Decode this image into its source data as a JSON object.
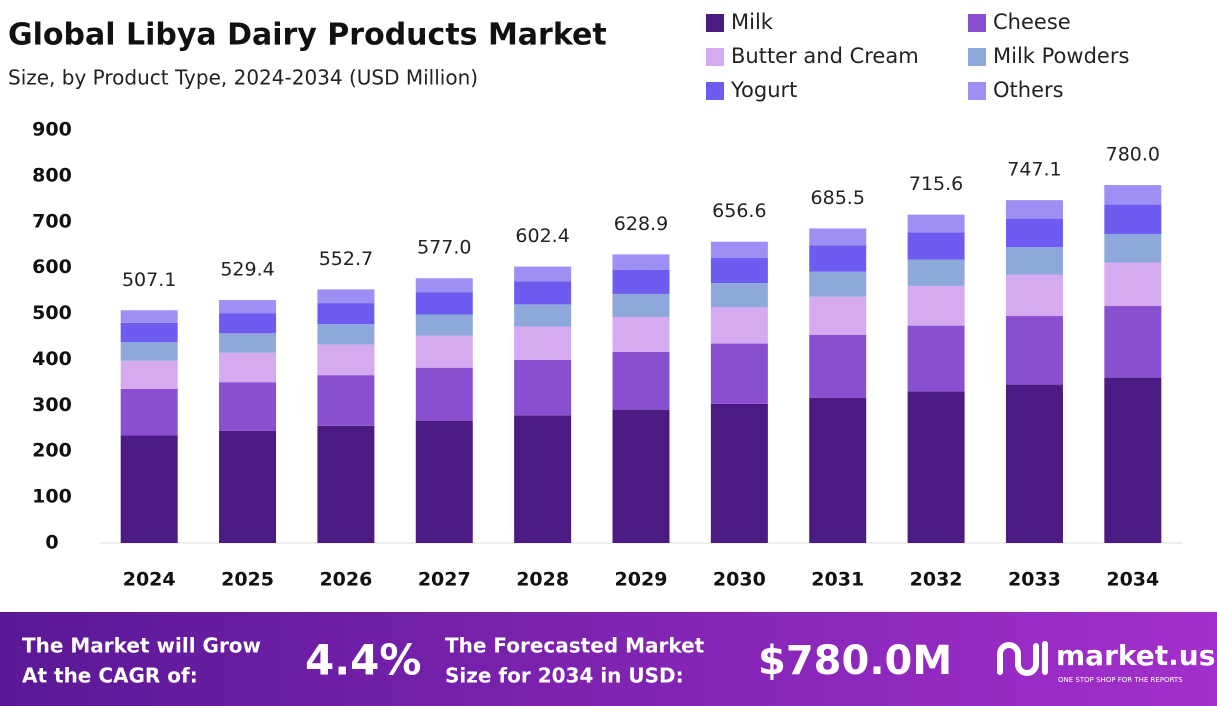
{
  "chart_data": {
    "type": "stacked-bar",
    "title": "Global Libya Dairy Products Market",
    "subtitle": "Size, by Product Type, 2024-2034 (USD Million)",
    "categories": [
      "2024",
      "2025",
      "2026",
      "2027",
      "2028",
      "2029",
      "2030",
      "2031",
      "2032",
      "2033",
      "2034"
    ],
    "series": [
      {
        "name": "Milk",
        "color": "#4b1a83",
        "values": [
          234.3,
          244.6,
          255.3,
          266.6,
          278.3,
          290.6,
          303.3,
          316.7,
          330.6,
          345.2,
          360.4
        ]
      },
      {
        "name": "Cheese",
        "color": "#8a4fd0",
        "values": [
          101.4,
          105.9,
          110.5,
          115.4,
          120.5,
          125.8,
          131.3,
          137.1,
          143.1,
          149.4,
          156.0
        ]
      },
      {
        "name": "Butter and Cream",
        "color": "#d5aaf0",
        "values": [
          61.4,
          64.1,
          66.9,
          69.8,
          72.9,
          76.1,
          79.4,
          82.9,
          86.6,
          90.4,
          94.4
        ]
      },
      {
        "name": "Milk Powders",
        "color": "#8fa8dc",
        "values": [
          40.6,
          42.4,
          44.2,
          46.2,
          48.2,
          50.3,
          52.5,
          54.8,
          57.2,
          59.8,
          62.4
        ]
      },
      {
        "name": "Yogurt",
        "color": "#6e5cf0",
        "values": [
          42.1,
          43.9,
          45.9,
          47.9,
          50.0,
          52.2,
          54.5,
          56.9,
          59.4,
          62.0,
          64.7
        ]
      },
      {
        "name": "Others",
        "color": "#9d8ff3",
        "values": [
          27.3,
          28.5,
          29.9,
          31.1,
          32.5,
          33.9,
          35.6,
          37.1,
          38.7,
          40.3,
          42.1
        ]
      }
    ],
    "totals": [
      507.1,
      529.4,
      552.7,
      577.0,
      602.4,
      628.9,
      656.6,
      685.5,
      715.6,
      747.1,
      780.0
    ],
    "total_labels": [
      "507.1",
      "529.4",
      "552.7",
      "577.0",
      "602.4",
      "628.9",
      "656.6",
      "685.5",
      "715.6",
      "747.1",
      "780.0"
    ],
    "ylim": [
      0,
      900
    ],
    "yticks": [
      0,
      100,
      200,
      300,
      400,
      500,
      600,
      700,
      800,
      900
    ],
    "legend": "top-right"
  },
  "footer": {
    "cagr_text": [
      "The Market will Grow",
      "At the CAGR of:"
    ],
    "cagr_value": "4.4%",
    "forecast_text": [
      "The Forecasted Market",
      "Size for 2034 in USD:"
    ],
    "forecast_value": "$780.0M",
    "brand": "market.us",
    "tagline": "ONE STOP SHOP FOR THE REPORTS"
  }
}
